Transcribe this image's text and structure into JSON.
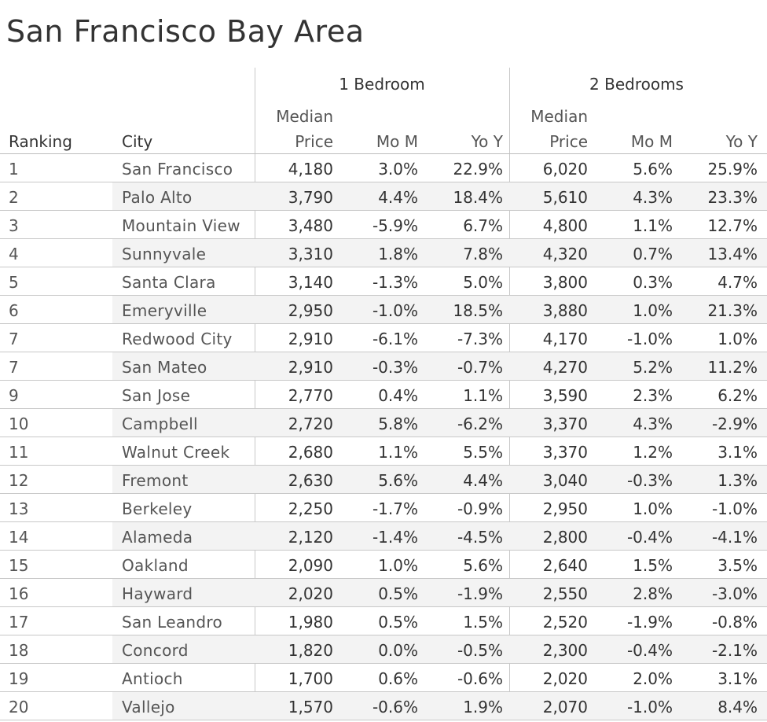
{
  "title": "San Francisco Bay Area",
  "chart_data": {
    "type": "table",
    "title": "San Francisco Bay Area",
    "groups": [
      "1 Bedroom",
      "2 Bedrooms"
    ],
    "columns": {
      "ranking": "Ranking",
      "city": "City",
      "median_line1": "Median",
      "median_line2": "Price",
      "mom": "Mo M",
      "yoy": "Yo Y"
    },
    "rows": [
      {
        "rank": "1",
        "city": "San Francisco",
        "b1_price": "4,180",
        "b1_mom": "3.0%",
        "b1_yoy": "22.9%",
        "b2_price": "6,020",
        "b2_mom": "5.6%",
        "b2_yoy": "25.9%"
      },
      {
        "rank": "2",
        "city": "Palo Alto",
        "b1_price": "3,790",
        "b1_mom": "4.4%",
        "b1_yoy": "18.4%",
        "b2_price": "5,610",
        "b2_mom": "4.3%",
        "b2_yoy": "23.3%"
      },
      {
        "rank": "3",
        "city": "Mountain View",
        "b1_price": "3,480",
        "b1_mom": "-5.9%",
        "b1_yoy": "6.7%",
        "b2_price": "4,800",
        "b2_mom": "1.1%",
        "b2_yoy": "12.7%"
      },
      {
        "rank": "4",
        "city": "Sunnyvale",
        "b1_price": "3,310",
        "b1_mom": "1.8%",
        "b1_yoy": "7.8%",
        "b2_price": "4,320",
        "b2_mom": "0.7%",
        "b2_yoy": "13.4%"
      },
      {
        "rank": "5",
        "city": "Santa Clara",
        "b1_price": "3,140",
        "b1_mom": "-1.3%",
        "b1_yoy": "5.0%",
        "b2_price": "3,800",
        "b2_mom": "0.3%",
        "b2_yoy": "4.7%"
      },
      {
        "rank": "6",
        "city": "Emeryville",
        "b1_price": "2,950",
        "b1_mom": "-1.0%",
        "b1_yoy": "18.5%",
        "b2_price": "3,880",
        "b2_mom": "1.0%",
        "b2_yoy": "21.3%"
      },
      {
        "rank": "7",
        "city": "Redwood City",
        "b1_price": "2,910",
        "b1_mom": "-6.1%",
        "b1_yoy": "-7.3%",
        "b2_price": "4,170",
        "b2_mom": "-1.0%",
        "b2_yoy": "1.0%"
      },
      {
        "rank": "7",
        "city": "San Mateo",
        "b1_price": "2,910",
        "b1_mom": "-0.3%",
        "b1_yoy": "-0.7%",
        "b2_price": "4,270",
        "b2_mom": "5.2%",
        "b2_yoy": "11.2%"
      },
      {
        "rank": "9",
        "city": "San Jose",
        "b1_price": "2,770",
        "b1_mom": "0.4%",
        "b1_yoy": "1.1%",
        "b2_price": "3,590",
        "b2_mom": "2.3%",
        "b2_yoy": "6.2%"
      },
      {
        "rank": "10",
        "city": "Campbell",
        "b1_price": "2,720",
        "b1_mom": "5.8%",
        "b1_yoy": "-6.2%",
        "b2_price": "3,370",
        "b2_mom": "4.3%",
        "b2_yoy": "-2.9%"
      },
      {
        "rank": "11",
        "city": "Walnut Creek",
        "b1_price": "2,680",
        "b1_mom": "1.1%",
        "b1_yoy": "5.5%",
        "b2_price": "3,370",
        "b2_mom": "1.2%",
        "b2_yoy": "3.1%"
      },
      {
        "rank": "12",
        "city": "Fremont",
        "b1_price": "2,630",
        "b1_mom": "5.6%",
        "b1_yoy": "4.4%",
        "b2_price": "3,040",
        "b2_mom": "-0.3%",
        "b2_yoy": "1.3%"
      },
      {
        "rank": "13",
        "city": "Berkeley",
        "b1_price": "2,250",
        "b1_mom": "-1.7%",
        "b1_yoy": "-0.9%",
        "b2_price": "2,950",
        "b2_mom": "1.0%",
        "b2_yoy": "-1.0%"
      },
      {
        "rank": "14",
        "city": "Alameda",
        "b1_price": "2,120",
        "b1_mom": "-1.4%",
        "b1_yoy": "-4.5%",
        "b2_price": "2,800",
        "b2_mom": "-0.4%",
        "b2_yoy": "-4.1%"
      },
      {
        "rank": "15",
        "city": "Oakland",
        "b1_price": "2,090",
        "b1_mom": "1.0%",
        "b1_yoy": "5.6%",
        "b2_price": "2,640",
        "b2_mom": "1.5%",
        "b2_yoy": "3.5%"
      },
      {
        "rank": "16",
        "city": "Hayward",
        "b1_price": "2,020",
        "b1_mom": "0.5%",
        "b1_yoy": "-1.9%",
        "b2_price": "2,550",
        "b2_mom": "2.8%",
        "b2_yoy": "-3.0%"
      },
      {
        "rank": "17",
        "city": "San Leandro",
        "b1_price": "1,980",
        "b1_mom": "0.5%",
        "b1_yoy": "1.5%",
        "b2_price": "2,520",
        "b2_mom": "-1.9%",
        "b2_yoy": "-0.8%"
      },
      {
        "rank": "18",
        "city": "Concord",
        "b1_price": "1,820",
        "b1_mom": "0.0%",
        "b1_yoy": "-0.5%",
        "b2_price": "2,300",
        "b2_mom": "-0.4%",
        "b2_yoy": "-2.1%"
      },
      {
        "rank": "19",
        "city": "Antioch",
        "b1_price": "1,700",
        "b1_mom": "0.6%",
        "b1_yoy": "-0.6%",
        "b2_price": "2,020",
        "b2_mom": "2.0%",
        "b2_yoy": "3.1%"
      },
      {
        "rank": "20",
        "city": "Vallejo",
        "b1_price": "1,570",
        "b1_mom": "-0.6%",
        "b1_yoy": "1.9%",
        "b2_price": "2,070",
        "b2_mom": "-1.0%",
        "b2_yoy": "8.4%"
      }
    ]
  }
}
